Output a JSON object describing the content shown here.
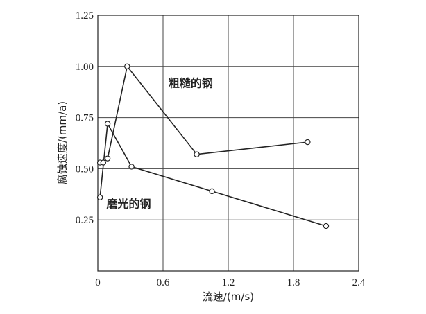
{
  "chart_data": {
    "type": "line",
    "title": "",
    "xlabel": "流速/(m/s)",
    "ylabel": "腐蚀速度/(mm/a)",
    "xlim": [
      0,
      2.4
    ],
    "ylim": [
      0,
      1.25
    ],
    "xticks": [
      0,
      0.6,
      1.2,
      1.8,
      2.4
    ],
    "xtick_labels": [
      "0",
      "0.6",
      "1.2",
      "1.8",
      "2.4"
    ],
    "yticks": [
      0.25,
      0.5,
      0.75,
      1.0,
      1.25
    ],
    "ytick_labels": [
      "0.25",
      "0.50",
      "0.75",
      "1.00",
      "1.25"
    ],
    "grid": true,
    "series": [
      {
        "name": "粗糙的钢",
        "x": [
          0.02,
          0.05,
          0.09,
          0.27,
          0.91,
          1.93
        ],
        "y": [
          0.53,
          0.53,
          0.55,
          1.0,
          0.57,
          0.63
        ]
      },
      {
        "name": "磨光的钢",
        "x": [
          0.02,
          0.09,
          0.31,
          1.05,
          2.1
        ],
        "y": [
          0.36,
          0.72,
          0.51,
          0.39,
          0.22
        ]
      }
    ],
    "annotations": [
      {
        "text": "粗糙的钢",
        "x": 0.65,
        "y": 0.9
      },
      {
        "text": "磨光的钢",
        "x": 0.08,
        "y": 0.31
      }
    ]
  }
}
